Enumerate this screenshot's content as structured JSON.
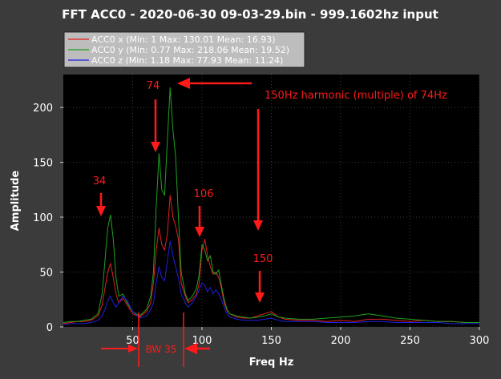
{
  "chart_data": {
    "type": "line",
    "title": "FFT ACC0 - 2020-06-30 09-03-29.bin - 999.1602hz input",
    "xlabel": "Freq Hz",
    "ylabel": "Amplitude",
    "xlim": [
      0,
      300
    ],
    "ylim": [
      0,
      230
    ],
    "x_ticks": [
      50,
      100,
      150,
      200,
      250,
      300
    ],
    "y_ticks": [
      0,
      50,
      100,
      150,
      200
    ],
    "grid": true,
    "legend_position": "top-left",
    "background": "#000000",
    "series": [
      {
        "name": "ACC0 x (Min: 1 Max: 130.01 Mean: 16.93)",
        "color": "#e02020",
        "x": [
          0,
          5,
          10,
          15,
          20,
          25,
          28,
          30,
          32,
          34,
          36,
          38,
          40,
          43,
          46,
          50,
          55,
          60,
          63,
          65,
          67,
          69,
          71,
          73,
          75,
          77,
          79,
          81,
          83,
          85,
          88,
          90,
          93,
          96,
          98,
          100,
          102,
          104,
          106,
          108,
          110,
          112,
          114,
          116,
          118,
          120,
          125,
          130,
          135,
          140,
          145,
          150,
          155,
          160,
          170,
          180,
          190,
          200,
          210,
          220,
          230,
          240,
          250,
          260,
          270,
          280,
          290,
          300
        ],
        "values": [
          3,
          4,
          5,
          5,
          6,
          10,
          20,
          35,
          50,
          58,
          45,
          30,
          22,
          26,
          20,
          12,
          9,
          14,
          22,
          40,
          70,
          90,
          75,
          70,
          85,
          120,
          100,
          92,
          80,
          40,
          28,
          22,
          25,
          30,
          40,
          70,
          80,
          65,
          55,
          48,
          50,
          45,
          35,
          22,
          15,
          12,
          9,
          8,
          8,
          10,
          12,
          14,
          9,
          7,
          6,
          6,
          5,
          6,
          5,
          7,
          7,
          6,
          5,
          6,
          5,
          5,
          4,
          4
        ]
      },
      {
        "name": "ACC0 y (Min: 0.77 Max: 218.06 Mean: 19.52)",
        "color": "#20a020",
        "x": [
          0,
          5,
          10,
          15,
          20,
          25,
          28,
          30,
          32,
          34,
          36,
          38,
          40,
          43,
          46,
          50,
          55,
          60,
          63,
          65,
          67,
          69,
          71,
          73,
          75,
          77,
          79,
          81,
          83,
          85,
          88,
          90,
          93,
          96,
          98,
          100,
          102,
          104,
          106,
          108,
          110,
          112,
          114,
          116,
          118,
          120,
          125,
          130,
          135,
          140,
          145,
          150,
          155,
          160,
          170,
          180,
          190,
          200,
          210,
          220,
          230,
          240,
          250,
          260,
          270,
          280,
          290,
          300
        ],
        "values": [
          4,
          5,
          5,
          6,
          7,
          12,
          30,
          60,
          90,
          102,
          80,
          45,
          28,
          30,
          22,
          14,
          10,
          16,
          28,
          50,
          110,
          158,
          125,
          120,
          170,
          218,
          180,
          155,
          100,
          50,
          30,
          24,
          28,
          35,
          48,
          75,
          70,
          60,
          65,
          50,
          48,
          52,
          38,
          25,
          16,
          12,
          10,
          9,
          8,
          9,
          10,
          12,
          9,
          8,
          7,
          7,
          8,
          9,
          10,
          12,
          10,
          8,
          7,
          6,
          5,
          5,
          4,
          4
        ]
      },
      {
        "name": "ACC0 z (Min: 1.18 Max: 77.93 Mean: 11.24)",
        "color": "#2020e0",
        "x": [
          0,
          5,
          10,
          15,
          20,
          25,
          28,
          30,
          32,
          34,
          36,
          38,
          40,
          43,
          46,
          50,
          55,
          60,
          63,
          65,
          67,
          69,
          71,
          73,
          75,
          77,
          79,
          81,
          83,
          85,
          88,
          90,
          93,
          96,
          98,
          100,
          102,
          104,
          106,
          108,
          110,
          112,
          114,
          116,
          118,
          120,
          125,
          130,
          135,
          140,
          145,
          150,
          155,
          160,
          170,
          180,
          190,
          200,
          210,
          220,
          230,
          240,
          250,
          260,
          270,
          280,
          290,
          300
        ],
        "values": [
          2,
          3,
          3,
          3,
          4,
          6,
          10,
          16,
          24,
          28,
          22,
          18,
          22,
          28,
          24,
          14,
          8,
          10,
          16,
          22,
          40,
          55,
          45,
          42,
          60,
          78,
          65,
          55,
          45,
          30,
          22,
          18,
          22,
          28,
          34,
          40,
          38,
          32,
          36,
          30,
          34,
          30,
          25,
          18,
          12,
          9,
          7,
          6,
          6,
          6,
          7,
          8,
          6,
          5,
          5,
          5,
          4,
          4,
          4,
          5,
          5,
          4,
          4,
          4,
          4,
          3,
          3,
          3
        ]
      }
    ],
    "annotations": [
      {
        "label": "74",
        "color": "#ff1a1a"
      },
      {
        "label": "150Hz harmonic (multiple) of 74Hz",
        "color": "#ff1a1a"
      },
      {
        "label": "34",
        "color": "#ff1a1a"
      },
      {
        "label": "106",
        "color": "#ff1a1a"
      },
      {
        "label": "150",
        "color": "#ff1a1a"
      },
      {
        "label": "BW 35",
        "color": "#ff1a1a"
      }
    ]
  }
}
